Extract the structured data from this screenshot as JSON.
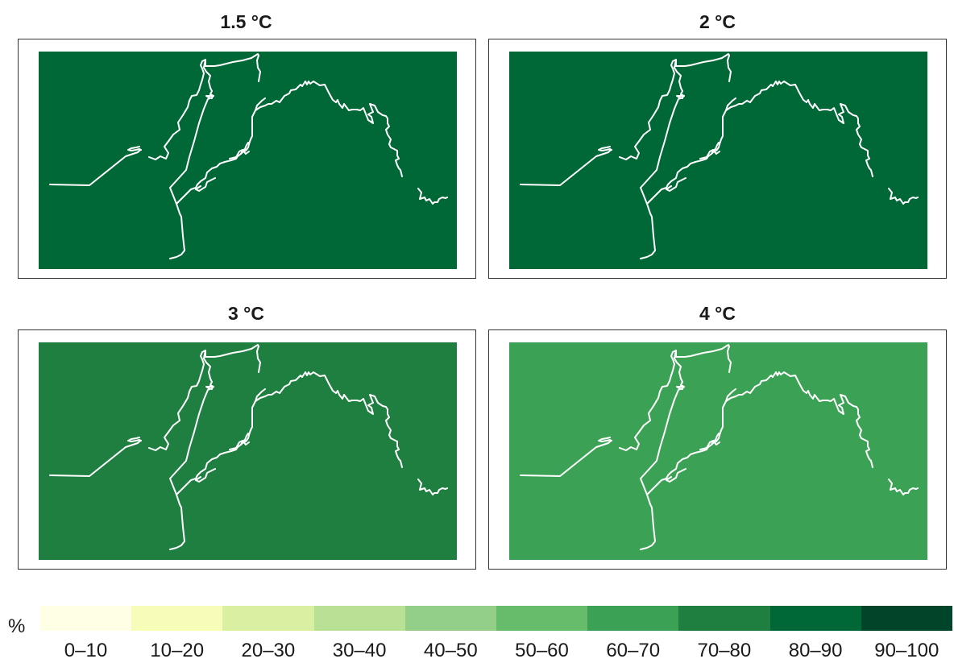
{
  "chart_data": {
    "type": "heatmap",
    "unit_label": "%",
    "panels": [
      {
        "title": "1.5 °C",
        "value_class": "80–90",
        "fill": "#006837"
      },
      {
        "title": "2 °C",
        "value_class": "80–90",
        "fill": "#006837"
      },
      {
        "title": "3 °C",
        "value_class": "70–80",
        "fill": "#1f7f41"
      },
      {
        "title": "4 °C",
        "value_class": "60–70",
        "fill": "#3ba255"
      }
    ],
    "legend": [
      {
        "label": "0–10",
        "color": "#ffffe5"
      },
      {
        "label": "10–20",
        "color": "#f7fcb9"
      },
      {
        "label": "20–30",
        "color": "#d9f0a3"
      },
      {
        "label": "30–40",
        "color": "#b8e196"
      },
      {
        "label": "40–50",
        "color": "#93cf89"
      },
      {
        "label": "50–60",
        "color": "#66bc6a"
      },
      {
        "label": "60–70",
        "color": "#3ba255"
      },
      {
        "label": "70–80",
        "color": "#1f7f41"
      },
      {
        "label": "80–90",
        "color": "#006837"
      },
      {
        "label": "90–100",
        "color": "#004529"
      }
    ]
  }
}
